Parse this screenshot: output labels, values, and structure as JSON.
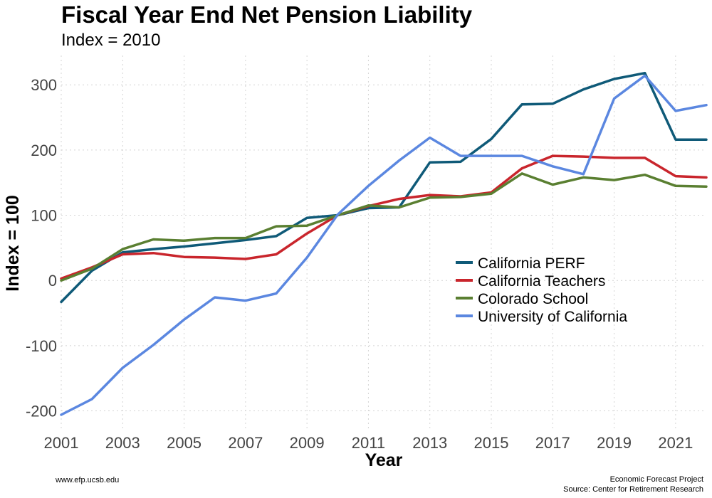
{
  "chart_data": {
    "type": "line",
    "title": "Fiscal Year End Net Pension Liability",
    "subtitle": "Index = 2010",
    "xlabel": "Year",
    "ylabel": "Index = 100",
    "xlim": [
      2001,
      2022
    ],
    "ylim": [
      -230,
      345
    ],
    "xticks": [
      2001,
      2003,
      2005,
      2007,
      2009,
      2011,
      2013,
      2015,
      2017,
      2019,
      2021
    ],
    "yticks": [
      -200,
      -100,
      0,
      100,
      200,
      300
    ],
    "grid": true,
    "legend_position": "right-center",
    "x": [
      2001,
      2002,
      2003,
      2004,
      2005,
      2006,
      2007,
      2008,
      2009,
      2010,
      2011,
      2012,
      2013,
      2014,
      2015,
      2016,
      2017,
      2018,
      2019,
      2020,
      2021,
      2022
    ],
    "series": [
      {
        "name": "California PERF",
        "color": "#0f5a78",
        "values": [
          -33,
          15,
          43,
          48,
          52,
          57,
          62,
          68,
          96,
          100,
          111,
          112,
          181,
          182,
          217,
          270,
          271,
          293,
          309,
          318,
          216,
          216
        ]
      },
      {
        "name": "California Teachers",
        "color": "#c9252c",
        "values": [
          3,
          20,
          40,
          42,
          36,
          35,
          33,
          40,
          72,
          100,
          114,
          125,
          131,
          129,
          135,
          172,
          191,
          190,
          188,
          188,
          160,
          158
        ]
      },
      {
        "name": "Colorado School",
        "color": "#5a7f31",
        "values": [
          0,
          18,
          48,
          63,
          61,
          65,
          65,
          83,
          84,
          100,
          115,
          112,
          127,
          128,
          133,
          164,
          147,
          158,
          154,
          162,
          145,
          144
        ]
      },
      {
        "name": "University of California",
        "color": "#5b87e0",
        "values": [
          -206,
          -182,
          -134,
          -99,
          -60,
          -26,
          -31,
          -20,
          35,
          101,
          145,
          184,
          219,
          191,
          191,
          191,
          175,
          163,
          279,
          314,
          260,
          269
        ]
      }
    ]
  },
  "footer": {
    "left": "www.efp.ucsb.edu",
    "right_line1": "Economic Forecast Project",
    "right_line2": "Source: Center for Retirement Research"
  }
}
